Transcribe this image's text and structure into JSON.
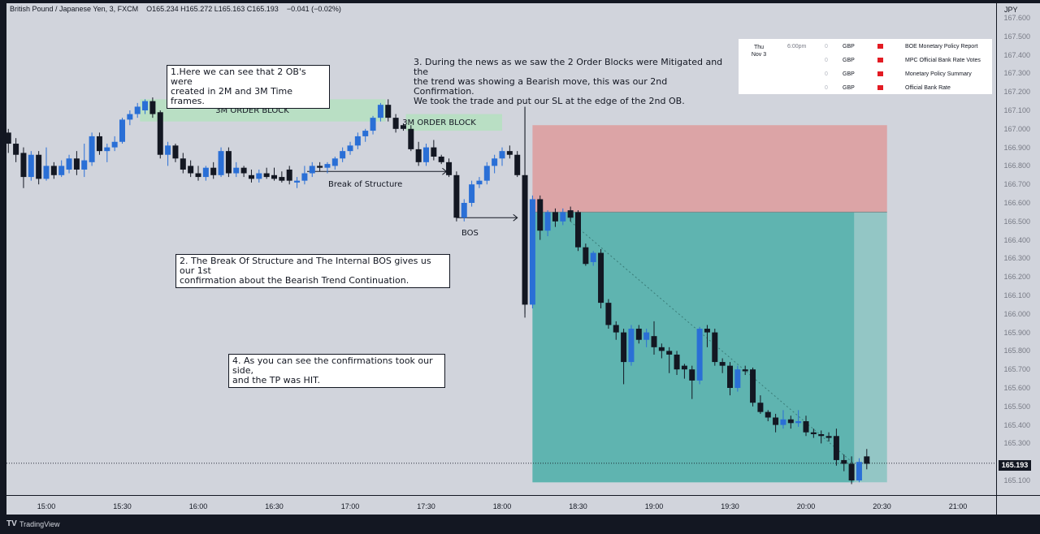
{
  "header": {
    "symbol": "British Pound / Japanese Yen, 3, FXCM",
    "ohlc": "O165.234  H165.272  L165.163  C165.193",
    "change": "−0.041 (−0.02%)"
  },
  "currency": "JPY",
  "current_price": "165.193",
  "footer": {
    "brand": "TradingView",
    "logo": "tv-logo-icon"
  },
  "colors": {
    "background": "#d1d4dc",
    "bull": "#2a6fd6",
    "bear": "#131722",
    "ob": "#b9dfc4",
    "stop_zone": "#dca4a6",
    "target_zone": "#5fb4b0",
    "target_zone_light": "#93c6c5"
  },
  "annotations": {
    "a1": "1.Here we can see that 2 OB's were\ncreated in 2M and 3M Time frames.",
    "a2": "2. The Break Of Structure and The Internal BOS gives us our 1st\nconfirmation about the Bearish Trend Continuation.",
    "a3": "3. During the news as we saw the 2 Order Blocks were Mitigated and the\nthe trend was showing a Bearish move, this was our 2nd Confirmation.\nWe took the trade and put our SL at the edge of the 2nd OB.",
    "a4": "4. As you can see the confirmations took our side,\n and the TP was HIT."
  },
  "labels": {
    "ob1": "3M ORDER BLOCK",
    "ob2": "3M ORDER BLOCK",
    "bos_long": "Break of Structure",
    "bos_short": "BOS"
  },
  "economic_events": {
    "day": "Thu",
    "date": "Nov 3",
    "rows": [
      {
        "time": "6:00pm",
        "impact": "0",
        "currency": "GBP",
        "title": "BOE Monetary Policy Report"
      },
      {
        "time": "",
        "impact": "0",
        "currency": "GBP",
        "title": "MPC Official Bank Rate Votes"
      },
      {
        "time": "",
        "impact": "0",
        "currency": "GBP",
        "title": "Monetary Policy Summary"
      },
      {
        "time": "",
        "impact": "0",
        "currency": "GBP",
        "title": "Official Bank Rate"
      }
    ]
  },
  "chart_data": {
    "type": "candlestick",
    "timeframe": "3",
    "x_ticks": [
      "15:00",
      "15:30",
      "16:00",
      "16:30",
      "17:00",
      "17:30",
      "18:00",
      "18:30",
      "19:00",
      "19:30",
      "20:00",
      "20:30",
      "21:00"
    ],
    "y_ticks": [
      167.6,
      167.5,
      167.4,
      167.3,
      167.2,
      167.1,
      167.0,
      166.9,
      166.8,
      166.7,
      166.6,
      166.5,
      166.4,
      166.3,
      166.2,
      166.1,
      166.0,
      165.9,
      165.8,
      165.7,
      165.6,
      165.5,
      165.4,
      165.3,
      165.1
    ],
    "ylim": [
      165.05,
      167.65
    ],
    "xlim_minutes": [
      -25,
      377
    ],
    "candles": [
      {
        "t": -21,
        "o": 166.95,
        "h": 167.1,
        "l": 166.95,
        "c": 167.05
      },
      {
        "t": -18,
        "o": 167.05,
        "h": 167.08,
        "l": 166.9,
        "c": 166.95
      },
      {
        "t": -15,
        "o": 166.98,
        "h": 167.0,
        "l": 166.87,
        "c": 166.92
      },
      {
        "t": -12,
        "o": 166.92,
        "h": 166.95,
        "l": 166.82,
        "c": 166.86
      },
      {
        "t": -9,
        "o": 166.87,
        "h": 166.9,
        "l": 166.68,
        "c": 166.74
      },
      {
        "t": -6,
        "o": 166.74,
        "h": 166.88,
        "l": 166.72,
        "c": 166.86
      },
      {
        "t": -3,
        "o": 166.86,
        "h": 166.88,
        "l": 166.7,
        "c": 166.73
      },
      {
        "t": 0,
        "o": 166.73,
        "h": 166.9,
        "l": 166.72,
        "c": 166.8
      },
      {
        "t": 3,
        "o": 166.8,
        "h": 166.82,
        "l": 166.73,
        "c": 166.75
      },
      {
        "t": 6,
        "o": 166.75,
        "h": 166.83,
        "l": 166.74,
        "c": 166.8
      },
      {
        "t": 9,
        "o": 166.78,
        "h": 166.86,
        "l": 166.76,
        "c": 166.84
      },
      {
        "t": 12,
        "o": 166.84,
        "h": 166.88,
        "l": 166.75,
        "c": 166.78
      },
      {
        "t": 15,
        "o": 166.78,
        "h": 166.92,
        "l": 166.74,
        "c": 166.83
      },
      {
        "t": 18,
        "o": 166.82,
        "h": 166.98,
        "l": 166.8,
        "c": 166.96
      },
      {
        "t": 21,
        "o": 166.96,
        "h": 166.98,
        "l": 166.86,
        "c": 166.88
      },
      {
        "t": 24,
        "o": 166.88,
        "h": 166.92,
        "l": 166.82,
        "c": 166.9
      },
      {
        "t": 27,
        "o": 166.9,
        "h": 166.96,
        "l": 166.88,
        "c": 166.93
      },
      {
        "t": 30,
        "o": 166.93,
        "h": 167.06,
        "l": 166.92,
        "c": 167.05
      },
      {
        "t": 33,
        "o": 167.05,
        "h": 167.1,
        "l": 167.02,
        "c": 167.08
      },
      {
        "t": 36,
        "o": 167.08,
        "h": 167.14,
        "l": 167.06,
        "c": 167.12
      },
      {
        "t": 39,
        "o": 167.1,
        "h": 167.16,
        "l": 167.08,
        "c": 167.15
      },
      {
        "t": 42,
        "o": 167.15,
        "h": 167.17,
        "l": 167.06,
        "c": 167.08
      },
      {
        "t": 45,
        "o": 167.09,
        "h": 167.1,
        "l": 166.84,
        "c": 166.86
      },
      {
        "t": 48,
        "o": 166.86,
        "h": 166.93,
        "l": 166.8,
        "c": 166.91
      },
      {
        "t": 51,
        "o": 166.91,
        "h": 166.92,
        "l": 166.82,
        "c": 166.84
      },
      {
        "t": 54,
        "o": 166.84,
        "h": 166.87,
        "l": 166.76,
        "c": 166.78
      },
      {
        "t": 57,
        "o": 166.8,
        "h": 166.83,
        "l": 166.74,
        "c": 166.76
      },
      {
        "t": 60,
        "o": 166.76,
        "h": 166.8,
        "l": 166.72,
        "c": 166.74
      },
      {
        "t": 63,
        "o": 166.74,
        "h": 166.8,
        "l": 166.72,
        "c": 166.79
      },
      {
        "t": 66,
        "o": 166.79,
        "h": 166.82,
        "l": 166.73,
        "c": 166.75
      },
      {
        "t": 69,
        "o": 166.75,
        "h": 166.9,
        "l": 166.74,
        "c": 166.88
      },
      {
        "t": 72,
        "o": 166.88,
        "h": 166.9,
        "l": 166.74,
        "c": 166.76
      },
      {
        "t": 75,
        "o": 166.76,
        "h": 166.82,
        "l": 166.74,
        "c": 166.79
      },
      {
        "t": 78,
        "o": 166.79,
        "h": 166.8,
        "l": 166.74,
        "c": 166.76
      },
      {
        "t": 81,
        "o": 166.75,
        "h": 166.78,
        "l": 166.71,
        "c": 166.73
      },
      {
        "t": 84,
        "o": 166.73,
        "h": 166.78,
        "l": 166.71,
        "c": 166.76
      },
      {
        "t": 87,
        "o": 166.76,
        "h": 166.79,
        "l": 166.73,
        "c": 166.74
      },
      {
        "t": 90,
        "o": 166.75,
        "h": 166.79,
        "l": 166.72,
        "c": 166.73
      },
      {
        "t": 93,
        "o": 166.74,
        "h": 166.77,
        "l": 166.71,
        "c": 166.72
      },
      {
        "t": 96,
        "o": 166.78,
        "h": 166.8,
        "l": 166.7,
        "c": 166.72
      },
      {
        "t": 99,
        "o": 166.71,
        "h": 166.74,
        "l": 166.68,
        "c": 166.72
      },
      {
        "t": 102,
        "o": 166.72,
        "h": 166.8,
        "l": 166.7,
        "c": 166.76
      },
      {
        "t": 105,
        "o": 166.76,
        "h": 166.82,
        "l": 166.74,
        "c": 166.8
      },
      {
        "t": 108,
        "o": 166.8,
        "h": 166.82,
        "l": 166.77,
        "c": 166.79
      },
      {
        "t": 111,
        "o": 166.79,
        "h": 166.82,
        "l": 166.76,
        "c": 166.81
      },
      {
        "t": 114,
        "o": 166.8,
        "h": 166.85,
        "l": 166.78,
        "c": 166.84
      },
      {
        "t": 117,
        "o": 166.84,
        "h": 166.9,
        "l": 166.82,
        "c": 166.88
      },
      {
        "t": 120,
        "o": 166.88,
        "h": 166.93,
        "l": 166.86,
        "c": 166.91
      },
      {
        "t": 123,
        "o": 166.91,
        "h": 166.98,
        "l": 166.89,
        "c": 166.96
      },
      {
        "t": 126,
        "o": 166.96,
        "h": 167.0,
        "l": 166.93,
        "c": 166.99
      },
      {
        "t": 129,
        "o": 166.99,
        "h": 167.07,
        "l": 166.97,
        "c": 167.06
      },
      {
        "t": 132,
        "o": 167.06,
        "h": 167.14,
        "l": 167.04,
        "c": 167.13
      },
      {
        "t": 135,
        "o": 167.13,
        "h": 167.16,
        "l": 167.04,
        "c": 167.06
      },
      {
        "t": 138,
        "o": 167.06,
        "h": 167.08,
        "l": 166.98,
        "c": 167.0
      },
      {
        "t": 141,
        "o": 167.02,
        "h": 167.03,
        "l": 166.99,
        "c": 167.0
      },
      {
        "t": 144,
        "o": 167.0,
        "h": 167.02,
        "l": 166.88,
        "c": 166.89
      },
      {
        "t": 147,
        "o": 166.89,
        "h": 166.93,
        "l": 166.8,
        "c": 166.82
      },
      {
        "t": 150,
        "o": 166.82,
        "h": 166.92,
        "l": 166.8,
        "c": 166.9
      },
      {
        "t": 153,
        "o": 166.9,
        "h": 166.94,
        "l": 166.83,
        "c": 166.85
      },
      {
        "t": 156,
        "o": 166.85,
        "h": 166.86,
        "l": 166.81,
        "c": 166.82
      },
      {
        "t": 159,
        "o": 166.82,
        "h": 166.84,
        "l": 166.74,
        "c": 166.75
      },
      {
        "t": 162,
        "o": 166.75,
        "h": 166.77,
        "l": 166.5,
        "c": 166.52
      },
      {
        "t": 165,
        "o": 166.52,
        "h": 166.62,
        "l": 166.5,
        "c": 166.6
      },
      {
        "t": 168,
        "o": 166.6,
        "h": 166.72,
        "l": 166.58,
        "c": 166.7
      },
      {
        "t": 171,
        "o": 166.7,
        "h": 166.74,
        "l": 166.68,
        "c": 166.72
      },
      {
        "t": 174,
        "o": 166.72,
        "h": 166.82,
        "l": 166.7,
        "c": 166.8
      },
      {
        "t": 177,
        "o": 166.8,
        "h": 166.86,
        "l": 166.76,
        "c": 166.84
      },
      {
        "t": 180,
        "o": 166.84,
        "h": 166.9,
        "l": 166.8,
        "c": 166.88
      },
      {
        "t": 183,
        "o": 166.88,
        "h": 166.91,
        "l": 166.84,
        "c": 166.86
      },
      {
        "t": 186,
        "o": 166.86,
        "h": 166.88,
        "l": 166.74,
        "c": 166.75
      },
      {
        "t": 189,
        "o": 166.75,
        "h": 167.12,
        "l": 165.98,
        "c": 166.05
      },
      {
        "t": 192,
        "o": 166.05,
        "h": 166.64,
        "l": 166.03,
        "c": 166.62
      },
      {
        "t": 195,
        "o": 166.62,
        "h": 166.64,
        "l": 166.4,
        "c": 166.45
      },
      {
        "t": 198,
        "o": 166.45,
        "h": 166.56,
        "l": 166.42,
        "c": 166.55
      },
      {
        "t": 201,
        "o": 166.55,
        "h": 166.57,
        "l": 166.47,
        "c": 166.5
      },
      {
        "t": 204,
        "o": 166.5,
        "h": 166.57,
        "l": 166.48,
        "c": 166.55
      },
      {
        "t": 207,
        "o": 166.56,
        "h": 166.58,
        "l": 166.5,
        "c": 166.52
      },
      {
        "t": 210,
        "o": 166.55,
        "h": 166.56,
        "l": 166.34,
        "c": 166.36
      },
      {
        "t": 213,
        "o": 166.36,
        "h": 166.38,
        "l": 166.26,
        "c": 166.27
      },
      {
        "t": 216,
        "o": 166.28,
        "h": 166.34,
        "l": 166.26,
        "c": 166.33
      },
      {
        "t": 219,
        "o": 166.33,
        "h": 166.35,
        "l": 166.03,
        "c": 166.06
      },
      {
        "t": 222,
        "o": 166.06,
        "h": 166.08,
        "l": 165.92,
        "c": 165.94
      },
      {
        "t": 225,
        "o": 165.94,
        "h": 165.96,
        "l": 165.86,
        "c": 165.9
      },
      {
        "t": 228,
        "o": 165.9,
        "h": 165.92,
        "l": 165.62,
        "c": 165.74
      },
      {
        "t": 231,
        "o": 165.74,
        "h": 165.94,
        "l": 165.72,
        "c": 165.92
      },
      {
        "t": 234,
        "o": 165.92,
        "h": 165.94,
        "l": 165.84,
        "c": 165.86
      },
      {
        "t": 237,
        "o": 165.86,
        "h": 165.92,
        "l": 165.82,
        "c": 165.9
      },
      {
        "t": 240,
        "o": 165.88,
        "h": 165.96,
        "l": 165.78,
        "c": 165.82
      },
      {
        "t": 243,
        "o": 165.82,
        "h": 165.84,
        "l": 165.76,
        "c": 165.8
      },
      {
        "t": 246,
        "o": 165.8,
        "h": 165.82,
        "l": 165.68,
        "c": 165.78
      },
      {
        "t": 249,
        "o": 165.78,
        "h": 165.8,
        "l": 165.67,
        "c": 165.7
      },
      {
        "t": 252,
        "o": 165.72,
        "h": 165.73,
        "l": 165.65,
        "c": 165.7
      },
      {
        "t": 255,
        "o": 165.7,
        "h": 165.72,
        "l": 165.54,
        "c": 165.64
      },
      {
        "t": 258,
        "o": 165.64,
        "h": 165.93,
        "l": 165.62,
        "c": 165.92
      },
      {
        "t": 261,
        "o": 165.92,
        "h": 165.94,
        "l": 165.82,
        "c": 165.9
      },
      {
        "t": 264,
        "o": 165.9,
        "h": 165.92,
        "l": 165.72,
        "c": 165.74
      },
      {
        "t": 267,
        "o": 165.74,
        "h": 165.76,
        "l": 165.68,
        "c": 165.72
      },
      {
        "t": 270,
        "o": 165.72,
        "h": 165.74,
        "l": 165.56,
        "c": 165.6
      },
      {
        "t": 273,
        "o": 165.6,
        "h": 165.72,
        "l": 165.58,
        "c": 165.7
      },
      {
        "t": 276,
        "o": 165.7,
        "h": 165.72,
        "l": 165.67,
        "c": 165.69
      },
      {
        "t": 279,
        "o": 165.7,
        "h": 165.71,
        "l": 165.5,
        "c": 165.52
      },
      {
        "t": 282,
        "o": 165.52,
        "h": 165.56,
        "l": 165.46,
        "c": 165.47
      },
      {
        "t": 285,
        "o": 165.47,
        "h": 165.48,
        "l": 165.42,
        "c": 165.44
      },
      {
        "t": 288,
        "o": 165.44,
        "h": 165.46,
        "l": 165.36,
        "c": 165.4
      },
      {
        "t": 291,
        "o": 165.4,
        "h": 165.48,
        "l": 165.38,
        "c": 165.43
      },
      {
        "t": 294,
        "o": 165.43,
        "h": 165.45,
        "l": 165.38,
        "c": 165.41
      },
      {
        "t": 297,
        "o": 165.41,
        "h": 165.48,
        "l": 165.39,
        "c": 165.42
      },
      {
        "t": 300,
        "o": 165.42,
        "h": 165.45,
        "l": 165.34,
        "c": 165.36
      },
      {
        "t": 303,
        "o": 165.36,
        "h": 165.38,
        "l": 165.33,
        "c": 165.35
      },
      {
        "t": 306,
        "o": 165.35,
        "h": 165.37,
        "l": 165.3,
        "c": 165.34
      },
      {
        "t": 309,
        "o": 165.34,
        "h": 165.36,
        "l": 165.31,
        "c": 165.33
      },
      {
        "t": 312,
        "o": 165.34,
        "h": 165.38,
        "l": 165.18,
        "c": 165.21
      },
      {
        "t": 315,
        "o": 165.21,
        "h": 165.24,
        "l": 165.15,
        "c": 165.19
      },
      {
        "t": 318,
        "o": 165.19,
        "h": 165.23,
        "l": 165.08,
        "c": 165.1
      },
      {
        "t": 321,
        "o": 165.1,
        "h": 165.22,
        "l": 165.09,
        "c": 165.2
      },
      {
        "t": 324,
        "o": 165.23,
        "h": 165.27,
        "l": 165.16,
        "c": 165.19
      }
    ],
    "order_blocks": [
      {
        "label": "3M ORDER BLOCK",
        "t_start": 37,
        "t_end": 134,
        "top": 167.16,
        "bottom": 167.04
      },
      {
        "label": "3M ORDER BLOCK",
        "t_start": 142,
        "t_end": 180,
        "top": 167.08,
        "bottom": 166.99
      }
    ],
    "position": {
      "t_start": 192,
      "t_end": 332,
      "stop": 167.02,
      "entry": 166.55,
      "target": 165.09,
      "fill_end_t": 319
    },
    "structure_lines": [
      {
        "label": "Break of Structure",
        "t_start": 103,
        "t_end": 158,
        "price": 166.77
      },
      {
        "label": "BOS",
        "t_start": 162,
        "t_end": 186,
        "price": 166.52
      }
    ],
    "current_price": 165.193
  }
}
